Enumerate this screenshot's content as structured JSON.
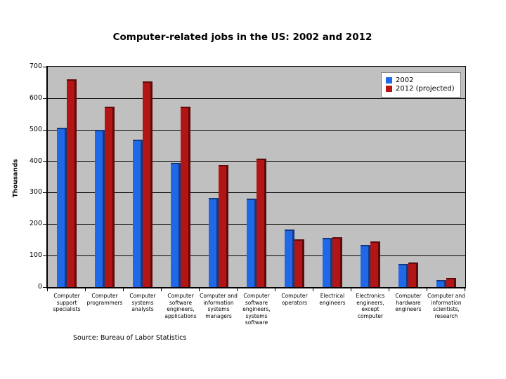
{
  "chart_data": {
    "type": "bar",
    "title": "Computer-related jobs in the US: 2002 and 2012",
    "ylabel": "Thousands",
    "xlabel": "",
    "ylim": [
      0,
      700
    ],
    "yticks": [
      0,
      100,
      200,
      300,
      400,
      500,
      600,
      700
    ],
    "grid": true,
    "plot_background": "#c0c0c0",
    "gridline_color": "#000000",
    "legend_position": "top-right",
    "categories": [
      "Computer support specialists",
      "Computer programmers",
      "Computer systems analysts",
      "Computer software engineers, applications",
      "Computer and information systems managers",
      "Computer software engineers, systems software",
      "Computer operators",
      "Electrical engineers",
      "Electronics engineers, except computer",
      "Computer hardware engineers",
      "Computer and information scientists, research"
    ],
    "series": [
      {
        "name": "2002",
        "color": "#1f69e8",
        "edge_color": "#16397e",
        "values": [
          507,
          499,
          468,
          394,
          284,
          281,
          182,
          156,
          133,
          74,
          23
        ]
      },
      {
        "name": "2012 (projected)",
        "color": "#b31414",
        "edge_color": "#5e0a0a",
        "values": [
          660,
          573,
          653,
          573,
          387,
          409,
          151,
          158,
          146,
          79,
          29
        ]
      }
    ],
    "source_note": "Source: Bureau of Labor Statistics"
  }
}
